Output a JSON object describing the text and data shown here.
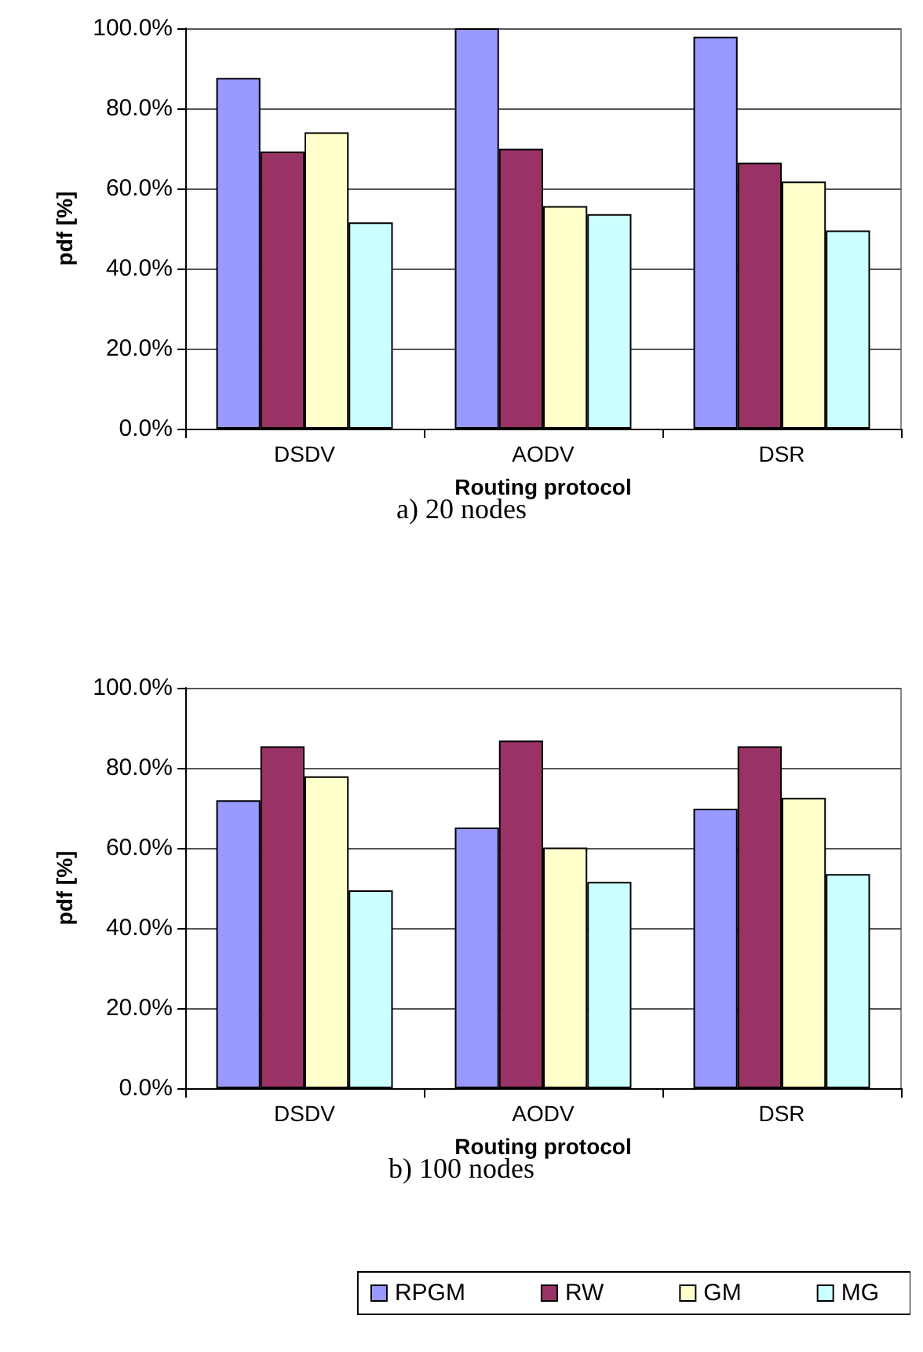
{
  "chart_data": [
    {
      "type": "bar",
      "xlabel": "Routing protocol",
      "ylabel": "pdf [%]",
      "annotations": [
        "a) 20 nodes"
      ],
      "categories": [
        "DSDV",
        "AODV",
        "DSR"
      ],
      "ylim": [
        0,
        100
      ],
      "yticks": [
        {
          "value": 0,
          "label": "0.0%"
        },
        {
          "value": 20,
          "label": "20.0%"
        },
        {
          "value": 40,
          "label": "40.0%"
        },
        {
          "value": 60,
          "label": "60.0%"
        },
        {
          "value": 80,
          "label": "80.0%"
        },
        {
          "value": 100,
          "label": "100.0%"
        }
      ],
      "grid": "y",
      "legend": false,
      "series": [
        {
          "color": "#9999ff",
          "values": [
            87.6,
            100,
            97.9
          ]
        },
        {
          "color": "#993366",
          "values": [
            69.2,
            69.9,
            66.4
          ]
        },
        {
          "color": "#ffffcc",
          "values": [
            74.0,
            55.6,
            61.7
          ]
        },
        {
          "color": "#ccffff",
          "values": [
            51.5,
            53.6,
            49.5
          ]
        }
      ]
    },
    {
      "type": "bar",
      "xlabel": "Routing protocol",
      "ylabel": "pdf [%]",
      "annotations": [
        "b) 100 nodes"
      ],
      "categories": [
        "DSDV",
        "AODV",
        "DSR"
      ],
      "ylim": [
        0,
        100
      ],
      "yticks": [
        {
          "value": 0,
          "label": "0.0%"
        },
        {
          "value": 20,
          "label": "20.0%"
        },
        {
          "value": 40,
          "label": "40.0%"
        },
        {
          "value": 60,
          "label": "60.0%"
        },
        {
          "value": 80,
          "label": "80.0%"
        },
        {
          "value": 100,
          "label": "100.0%"
        }
      ],
      "grid": "y",
      "legend": "bottom",
      "series": [
        {
          "name": "RPGM",
          "color": "#9999ff",
          "values": [
            71.9,
            65.1,
            69.8
          ]
        },
        {
          "name": "RW",
          "color": "#993366",
          "values": [
            85.4,
            86.8,
            85.4
          ]
        },
        {
          "name": "GM",
          "color": "#ffffcc",
          "values": [
            77.9,
            60.1,
            72.5
          ]
        },
        {
          "name": "MG",
          "color": "#ccffff",
          "values": [
            49.4,
            51.5,
            53.5
          ]
        }
      ]
    }
  ]
}
